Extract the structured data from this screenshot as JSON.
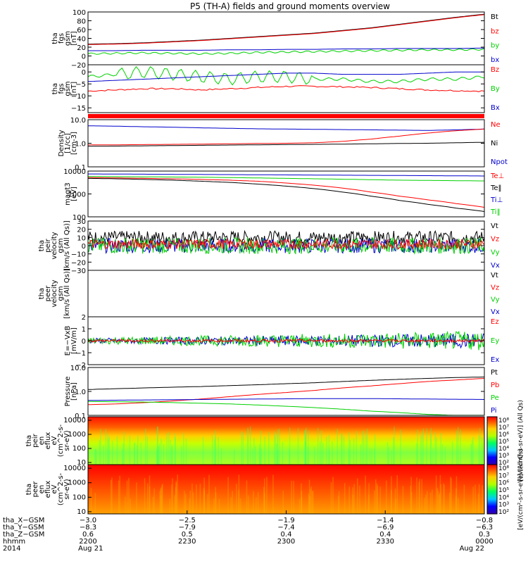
{
  "title": "P5 (TH-A) fields and ground moments overview",
  "colors": {
    "black": "#000000",
    "red": "#ff0000",
    "green": "#00d000",
    "blue": "#0000cc",
    "frame": "#000000"
  },
  "chart_data": [
    {
      "type": "line",
      "id": "fgs_mag",
      "ylabel": [
        "tha",
        "fgs",
        "gsm",
        "[nT]"
      ],
      "ylim": [
        -20,
        100
      ],
      "yticks": [
        "100",
        "80",
        "60",
        "40",
        "20",
        "0",
        "−20"
      ],
      "ytick_values": [
        100,
        80,
        60,
        40,
        20,
        0,
        -20
      ],
      "legend": [
        {
          "name": "Bt",
          "color": "#000000"
        },
        {
          "name": "bz",
          "color": "#ff0000"
        },
        {
          "name": "by",
          "color": "#00d000"
        },
        {
          "name": "bx",
          "color": "#0000cc"
        }
      ],
      "series": [
        {
          "name": "Bt",
          "color": "#000000",
          "values": [
            27,
            28,
            30,
            33,
            36,
            40,
            44,
            48,
            52,
            58,
            64,
            72,
            80,
            88,
            95
          ]
        },
        {
          "name": "bz",
          "color": "#ff0000",
          "values": [
            26,
            27,
            29,
            32,
            35,
            39,
            43,
            47,
            51,
            57,
            63,
            71,
            79,
            87,
            94
          ]
        },
        {
          "name": "by",
          "color": "#00d000",
          "values": [
            5,
            6,
            7,
            6,
            5,
            6,
            8,
            9,
            10,
            11,
            12,
            13,
            14,
            14,
            15
          ]
        },
        {
          "name": "bx",
          "color": "#0000cc",
          "values": [
            12,
            12,
            13,
            13,
            13,
            14,
            14,
            15,
            15,
            16,
            16,
            17,
            17,
            17,
            18
          ]
        }
      ]
    },
    {
      "type": "line",
      "id": "fgs_gsm",
      "ylabel": [
        "tha",
        "fgs",
        "gsm",
        "[nT]"
      ],
      "ylim": [
        -17,
        3
      ],
      "yticks": [
        "0",
        "−5",
        "−10",
        "−15"
      ],
      "ytick_values": [
        0,
        -5,
        -10,
        -15
      ],
      "legend": [
        {
          "name": "Bz",
          "color": "#ff0000"
        },
        {
          "name": "By",
          "color": "#00d000"
        },
        {
          "name": "Bx",
          "color": "#0000cc"
        }
      ],
      "series": [
        {
          "name": "Bz",
          "color": "#ff0000",
          "values": [
            -8,
            -7.5,
            -7,
            -7,
            -7.5,
            -7,
            -6.5,
            -6,
            -6,
            -6.2,
            -6.5,
            -7,
            -7.5,
            -7.8,
            -8
          ]
        },
        {
          "name": "By",
          "color": "#00d000",
          "values": [
            -2,
            -1,
            0,
            -1,
            -2,
            -3,
            -2,
            -2,
            -3,
            -3,
            -4,
            -4,
            -3,
            -3,
            -2
          ]
        },
        {
          "name": "Bx",
          "color": "#0000cc",
          "values": [
            -4,
            -3.5,
            -3,
            -2.5,
            -2,
            -1.5,
            -1,
            -0.5,
            -0.5,
            -1,
            -1,
            -1,
            -0.5,
            0,
            0
          ]
        }
      ]
    },
    {
      "type": "line",
      "id": "density",
      "ylabel": [
        "Density",
        "[1/cc]",
        "[cm-3]"
      ],
      "ylim": [
        0.1,
        10
      ],
      "log": true,
      "yticks": [
        "10.0",
        "1.0",
        "0.1"
      ],
      "ytick_values": [
        10,
        1,
        0.1
      ],
      "legend": [
        {
          "name": "Ne",
          "color": "#ff0000"
        },
        {
          "name": "Ni",
          "color": "#000000"
        },
        {
          "name": "Npot",
          "color": "#0000cc"
        }
      ],
      "series": [
        {
          "name": "Npot",
          "color": "#0000cc",
          "values": [
            5.5,
            5.3,
            5.0,
            4.8,
            4.5,
            4.3,
            4.1,
            4.0,
            3.9,
            3.8,
            3.7,
            3.6,
            3.5,
            3.7,
            4.0
          ]
        },
        {
          "name": "Ne",
          "color": "#ff0000",
          "values": [
            0.85,
            0.86,
            0.88,
            0.9,
            0.92,
            0.95,
            0.98,
            1.0,
            1.05,
            1.2,
            1.5,
            2.0,
            2.7,
            3.4,
            4.0
          ]
        },
        {
          "name": "Ni",
          "color": "#000000",
          "values": [
            0.75,
            0.76,
            0.78,
            0.8,
            0.82,
            0.84,
            0.86,
            0.88,
            0.9,
            0.92,
            0.95,
            0.98,
            1.0,
            1.05,
            1.1
          ]
        }
      ]
    },
    {
      "type": "line",
      "id": "temperature",
      "ylabel": [
        "magt3",
        "[eV]"
      ],
      "ylim": [
        100,
        10000
      ],
      "log": true,
      "yticks": [
        "10000",
        "1000",
        "100"
      ],
      "ytick_values": [
        10000,
        1000,
        100
      ],
      "legend": [
        {
          "name": "Te⊥",
          "color": "#ff0000"
        },
        {
          "name": "Te‖",
          "color": "#000000"
        },
        {
          "name": "Ti⊥",
          "color": "#0000cc"
        },
        {
          "name": "Ti‖",
          "color": "#00d000"
        }
      ],
      "series": [
        {
          "name": "Ti⊥",
          "color": "#0000cc",
          "values": [
            7500,
            7400,
            7300,
            7200,
            7100,
            7000,
            6900,
            6800,
            6700,
            6600,
            6500,
            6400,
            6300,
            6200,
            6100
          ]
        },
        {
          "name": "Ti‖",
          "color": "#00d000",
          "values": [
            5800,
            5700,
            5600,
            5500,
            5400,
            5200,
            5000,
            4800,
            4600,
            4400,
            4200,
            4000,
            3900,
            3800,
            3700
          ]
        },
        {
          "name": "Te⊥",
          "color": "#ff0000",
          "values": [
            5200,
            5000,
            4800,
            4600,
            4300,
            4000,
            3600,
            3000,
            2400,
            1800,
            1200,
            800,
            550,
            380,
            260
          ]
        },
        {
          "name": "Te‖",
          "color": "#000000",
          "values": [
            4800,
            4600,
            4300,
            4000,
            3600,
            3200,
            2700,
            2200,
            1700,
            1200,
            800,
            520,
            350,
            240,
            170
          ]
        }
      ]
    },
    {
      "type": "line",
      "id": "peir_velocity",
      "ylabel": [
        "tha",
        "peir",
        "velocity",
        "gsm",
        "[km/s (All Qs)]"
      ],
      "ylim": [
        -30,
        30
      ],
      "yticks": [
        "30",
        "20",
        "10",
        "0",
        "−10",
        "−20",
        "−30"
      ],
      "ytick_values": [
        30,
        20,
        10,
        0,
        -10,
        -20,
        -30
      ],
      "legend": [
        {
          "name": "Vt",
          "color": "#000000"
        },
        {
          "name": "Vz",
          "color": "#ff0000"
        },
        {
          "name": "Vy",
          "color": "#00d000"
        },
        {
          "name": "Vx",
          "color": "#0000cc"
        }
      ],
      "series": [
        {
          "name": "Vt",
          "color": "#000000",
          "mean": 10,
          "noise": 8
        },
        {
          "name": "Vx",
          "color": "#0000cc",
          "mean": 0,
          "noise": 9
        },
        {
          "name": "Vy",
          "color": "#00d000",
          "mean": 0,
          "noise": 10
        },
        {
          "name": "Vz",
          "color": "#ff0000",
          "mean": 2,
          "noise": 6
        }
      ]
    },
    {
      "type": "line",
      "id": "peer_velocity",
      "ylabel": [
        "tha",
        "peer",
        "velocity",
        "gsm",
        "[km/s (All Qs)]"
      ],
      "ylim": [
        -30,
        30
      ],
      "yticks": [],
      "ytick_values": [],
      "legend": [
        {
          "name": "Vt",
          "color": "#000000"
        },
        {
          "name": "Vz",
          "color": "#ff0000"
        },
        {
          "name": "Vy",
          "color": "#00d000"
        },
        {
          "name": "Vx",
          "color": "#0000cc"
        }
      ],
      "series": []
    },
    {
      "type": "line",
      "id": "efield",
      "ylabel": [
        "E=−VxB",
        "[mV/m]"
      ],
      "ylim": [
        -2,
        2
      ],
      "yticks": [
        "2",
        "1",
        "0",
        "−1",
        "−2"
      ],
      "ytick_values": [
        2,
        1,
        0,
        -1,
        -2
      ],
      "legend": [
        {
          "name": "Ez",
          "color": "#ff0000"
        },
        {
          "name": "Ey",
          "color": "#00d000"
        },
        {
          "name": "Ex",
          "color": "#0000cc"
        }
      ],
      "series": [
        {
          "name": "Ex",
          "color": "#0000cc",
          "mean": 0,
          "noise": 0.35
        },
        {
          "name": "Ey",
          "color": "#00d000",
          "mean": 0,
          "noise": 0.45
        },
        {
          "name": "Ez",
          "color": "#ff0000",
          "mean": 0,
          "noise": 0.12
        }
      ]
    },
    {
      "type": "line",
      "id": "pressure",
      "ylabel": [
        "Pressure",
        "[nPa]"
      ],
      "ylim": [
        0.1,
        10
      ],
      "log": true,
      "yticks": [
        "10.0",
        "1.0",
        "0.1"
      ],
      "ytick_values": [
        10,
        1,
        0.1
      ],
      "legend": [
        {
          "name": "Pt",
          "color": "#000000"
        },
        {
          "name": "Pb",
          "color": "#ff0000"
        },
        {
          "name": "Pe",
          "color": "#00d000"
        },
        {
          "name": "Pi",
          "color": "#0000cc"
        }
      ],
      "series": [
        {
          "name": "Pt",
          "color": "#000000",
          "values": [
            1.2,
            1.3,
            1.4,
            1.5,
            1.6,
            1.75,
            1.9,
            2.1,
            2.3,
            2.6,
            2.9,
            3.2,
            3.5,
            3.8,
            4.0
          ]
        },
        {
          "name": "Pb",
          "color": "#ff0000",
          "values": [
            0.28,
            0.3,
            0.34,
            0.4,
            0.48,
            0.6,
            0.75,
            0.9,
            1.1,
            1.4,
            1.7,
            2.1,
            2.6,
            3.0,
            3.5
          ]
        },
        {
          "name": "Pi",
          "color": "#0000cc",
          "values": [
            0.42,
            0.43,
            0.44,
            0.45,
            0.46,
            0.47,
            0.48,
            0.49,
            0.5,
            0.5,
            0.5,
            0.49,
            0.48,
            0.47,
            0.46
          ]
        },
        {
          "name": "Pe",
          "color": "#00d000",
          "values": [
            0.38,
            0.37,
            0.36,
            0.34,
            0.32,
            0.3,
            0.27,
            0.24,
            0.21,
            0.18,
            0.15,
            0.13,
            0.11,
            0.1,
            0.09
          ]
        }
      ]
    },
    {
      "type": "heatmap",
      "id": "peir_spectrogram",
      "ylabel": [
        "tha",
        "peir",
        "en",
        "eflux",
        "eV",
        "(cm^2-s-",
        "sr-eV)"
      ],
      "yticks": [
        "10000",
        "1000",
        "100",
        "10"
      ],
      "ytick_values": [
        10000,
        1000,
        100,
        10
      ],
      "colorbar_ticks": [
        "10⁸",
        "10⁷",
        "10⁶",
        "10⁵",
        "10⁴",
        "10³",
        "10²"
      ],
      "colorbar_label": "[eV/(cm²-s-sr-eV)] (All Qs)"
    },
    {
      "type": "heatmap",
      "id": "peer_spectrogram",
      "ylabel": [
        "tha",
        "peer",
        "en",
        "eflux",
        "eV",
        "(cm^2-s-",
        "sr-eV)"
      ],
      "yticks": [
        "10000",
        "1000",
        "100",
        "10"
      ],
      "ytick_values": [
        10000,
        1000,
        100,
        10
      ],
      "colorbar_ticks": [
        "10⁸",
        "10⁷",
        "10⁶",
        "10⁵",
        "10⁴",
        "10³",
        "10²"
      ],
      "colorbar_label": "[eV/(cm²-s-sr-eV)] (All Qs)"
    }
  ],
  "xaxis": {
    "row_labels": [
      "tha_X−GSM",
      "tha_Y−GSM",
      "tha_Z−GSM",
      "hhmm",
      "2014"
    ],
    "ticks": [
      {
        "x": "−3.0",
        "y": "−8.3",
        "z": "0.6",
        "hhmm": "2200",
        "date": "Aug 21"
      },
      {
        "x": "−2.5",
        "y": "−7.9",
        "z": "0.5",
        "hhmm": "2230",
        "date": ""
      },
      {
        "x": "−1.9",
        "y": "−7.4",
        "z": "0.4",
        "hhmm": "2300",
        "date": ""
      },
      {
        "x": "−1.4",
        "y": "−6.9",
        "z": "0.4",
        "hhmm": "2330",
        "date": ""
      },
      {
        "x": "−0.8",
        "y": "−6.3",
        "z": "0.3",
        "hhmm": "0000",
        "date": "Aug 22"
      }
    ]
  }
}
